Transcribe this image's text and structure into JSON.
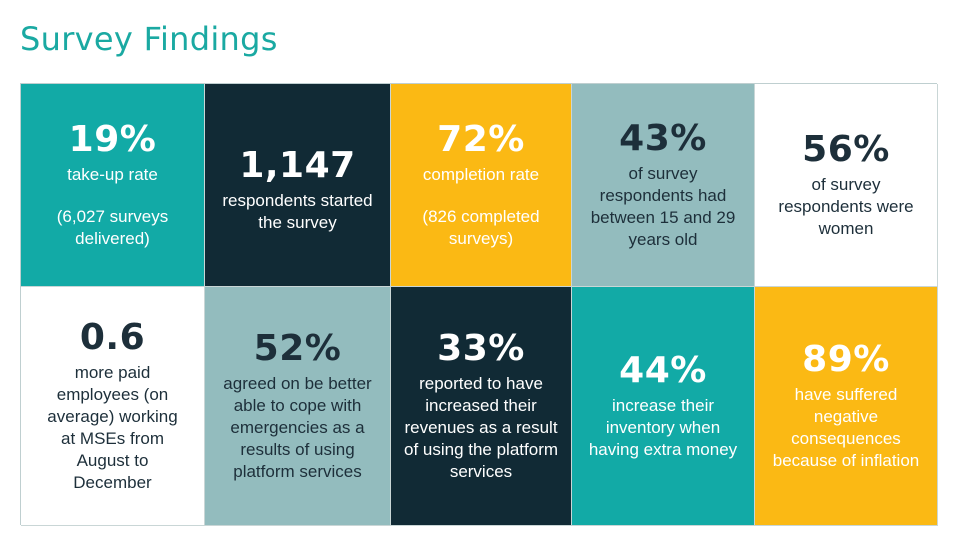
{
  "title": "Survey Findings",
  "colors": {
    "title": "#1aa9a2",
    "teal": "#12aaa6",
    "navy": "#112a35",
    "yellow": "#fbb914",
    "sage": "#93bcbe",
    "dark_text": "#1d2f3a"
  },
  "findings": [
    {
      "stat": "19%",
      "desc": "take-up rate",
      "note": "(6,027 surveys delivered)"
    },
    {
      "stat": "1,147",
      "desc": "respondents started the survey"
    },
    {
      "stat": "72%",
      "desc": "completion rate",
      "note": "(826 completed surveys)"
    },
    {
      "stat": "43%",
      "desc": "of survey respondents had between 15 and 29 years old"
    },
    {
      "stat": "56%",
      "desc": "of survey respondents were women"
    },
    {
      "stat": "0.6",
      "desc": "more paid employees (on average) working at MSEs from August to December"
    },
    {
      "stat": "52%",
      "desc": "agreed on be better able to cope with emergencies as a results of using platform services"
    },
    {
      "stat": "33%",
      "desc": "reported to have increased their revenues as a result of using the platform services"
    },
    {
      "stat": "44%",
      "desc": "increase their inventory when having extra money"
    },
    {
      "stat": "89%",
      "desc": "have suffered negative consequences because of inflation"
    }
  ]
}
